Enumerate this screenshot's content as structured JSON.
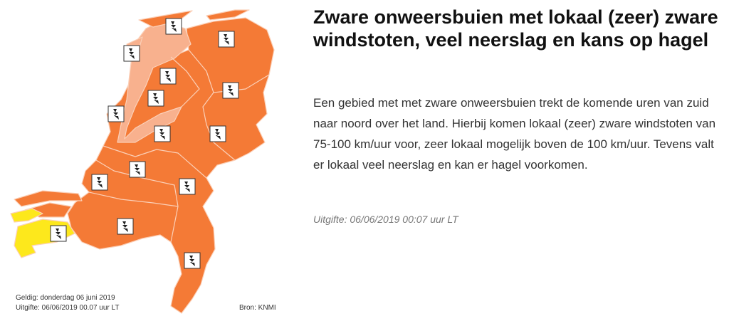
{
  "map": {
    "colors": {
      "orange": "#f47a36",
      "light_orange": "#f8b18e",
      "yellow": "#fde81c",
      "border": "#fbd0b8"
    },
    "icon": "lightning-warning-icon",
    "valid_label": "Geldig: donderdag 06 juni 2019",
    "issued_label": "Uitgifte: 06/06/2019 00.07 uur LT",
    "source_label": "Bron: KNMI"
  },
  "article": {
    "title": "Zware onweersbuien met lokaal (zeer) zware windstoten, veel neerslag en kans op hagel",
    "body": "Een gebied met met zware onweersbuien trekt de komende uren van zuid naar noord over het land. Hierbij komen lokaal (zeer) zware windstoten van 75-100 km/uur voor, zeer lokaal mogelijk boven de 100 km/uur. Tevens valt er lokaal veel neerslag en kan er hagel voorkomen.",
    "issued": "Uitgifte: 06/06/2019 00:07 uur LT"
  }
}
